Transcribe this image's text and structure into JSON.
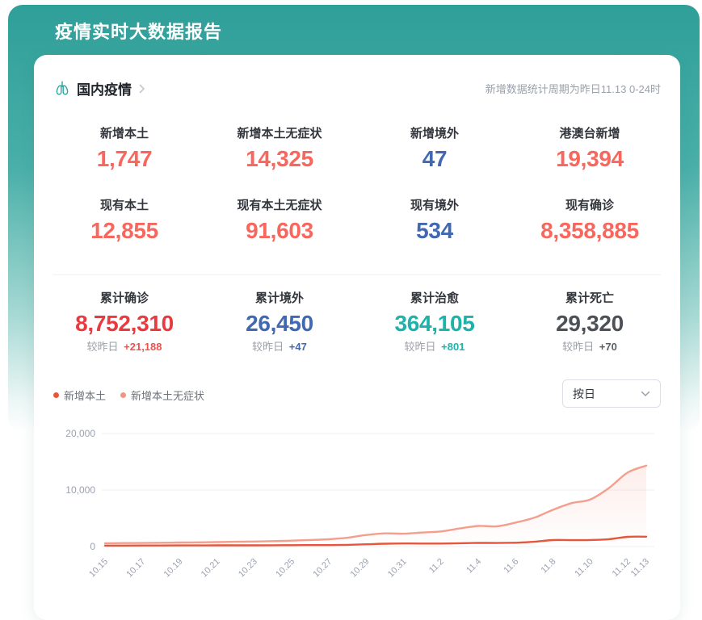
{
  "page": {
    "title": "疫情实时大数据报告"
  },
  "colors": {
    "background_teal": "#2F9F99",
    "coral": "#F7675E",
    "strong_red": "#E83A3F",
    "blue": "#4169B2",
    "teal_number": "#1EB2AB",
    "dark_gray": "#4C5158",
    "line_local": "#E4573C",
    "line_asymptomatic": "#F49E8E"
  },
  "card": {
    "section_title": "国内疫情",
    "update_note": "新增数据统计周期为昨日11.13 0-24时",
    "stats": [
      {
        "label": "新增本土",
        "value": "1,747"
      },
      {
        "label": "新增本土无症状",
        "value": "14,325"
      },
      {
        "label": "新增境外",
        "value": "47"
      },
      {
        "label": "港澳台新增",
        "value": "19,394"
      },
      {
        "label": "现有本土",
        "value": "12,855"
      },
      {
        "label": "现有本土无症状",
        "value": "91,603"
      },
      {
        "label": "现有境外",
        "value": "534"
      },
      {
        "label": "现有确诊",
        "value": "8,358,885"
      }
    ],
    "cumulative": [
      {
        "label": "累计确诊",
        "value": "8,752,310",
        "delta_label": "较昨日",
        "delta": "+21,188"
      },
      {
        "label": "累计境外",
        "value": "26,450",
        "delta_label": "较昨日",
        "delta": "+47"
      },
      {
        "label": "累计治愈",
        "value": "364,105",
        "delta_label": "较昨日",
        "delta": "+801"
      },
      {
        "label": "累计死亡",
        "value": "29,320",
        "delta_label": "较昨日",
        "delta": "+70"
      }
    ],
    "legend": [
      {
        "label": "新增本土",
        "color": "#E4573C"
      },
      {
        "label": "新增本土无症状",
        "color": "#F29584"
      }
    ],
    "period_select": {
      "value": "按日"
    }
  },
  "chart_data": {
    "type": "line",
    "x": [
      "10.15",
      "10.16",
      "10.17",
      "10.18",
      "10.19",
      "10.20",
      "10.21",
      "10.22",
      "10.23",
      "10.24",
      "10.25",
      "10.26",
      "10.27",
      "10.28",
      "10.29",
      "10.30",
      "10.31",
      "11.1",
      "11.2",
      "11.3",
      "11.4",
      "11.5",
      "11.6",
      "11.7",
      "11.8",
      "11.9",
      "11.10",
      "11.11",
      "11.12",
      "11.13"
    ],
    "series": [
      {
        "name": "新增本土无症状",
        "color": "#F49E8E",
        "area_fill": true,
        "values": [
          583,
          610,
          634,
          668,
          712,
          746,
          790,
          836,
          890,
          960,
          1040,
          1160,
          1290,
          1560,
          2050,
          2331,
          2270,
          2480,
          2669,
          3200,
          3637,
          3579,
          4236,
          5100,
          6500,
          7680,
          8335,
          10351,
          13086,
          14325
        ]
      },
      {
        "name": "新增本土",
        "color": "#E4573C",
        "area_fill": false,
        "values": [
          168,
          178,
          183,
          187,
          195,
          202,
          210,
          215,
          220,
          229,
          247,
          261,
          264,
          307,
          402,
          506,
          547,
          535,
          531,
          581,
          654,
          626,
          675,
          843,
          1150,
          1133,
          1161,
          1297,
          1711,
          1747
        ]
      }
    ],
    "yticks": [
      {
        "value": 0,
        "label": "0"
      },
      {
        "value": 10000,
        "label": "10,000"
      },
      {
        "value": 20000,
        "label": "20,000"
      }
    ],
    "xticks": [
      {
        "index": 0,
        "label": "10.15"
      },
      {
        "index": 2,
        "label": "10.17"
      },
      {
        "index": 4,
        "label": "10.19"
      },
      {
        "index": 6,
        "label": "10.21"
      },
      {
        "index": 8,
        "label": "10.23"
      },
      {
        "index": 10,
        "label": "10.25"
      },
      {
        "index": 12,
        "label": "10.27"
      },
      {
        "index": 14,
        "label": "10.29"
      },
      {
        "index": 16,
        "label": "10.31"
      },
      {
        "index": 18,
        "label": "11.2"
      },
      {
        "index": 20,
        "label": "11.4"
      },
      {
        "index": 22,
        "label": "11.6"
      },
      {
        "index": 24,
        "label": "11.8"
      },
      {
        "index": 26,
        "label": "11.10"
      },
      {
        "index": 28,
        "label": "11.12"
      },
      {
        "index": 29,
        "label": "11.13"
      }
    ],
    "ylim": [
      0,
      20000
    ],
    "grid": true,
    "legend_position": "top-left"
  }
}
